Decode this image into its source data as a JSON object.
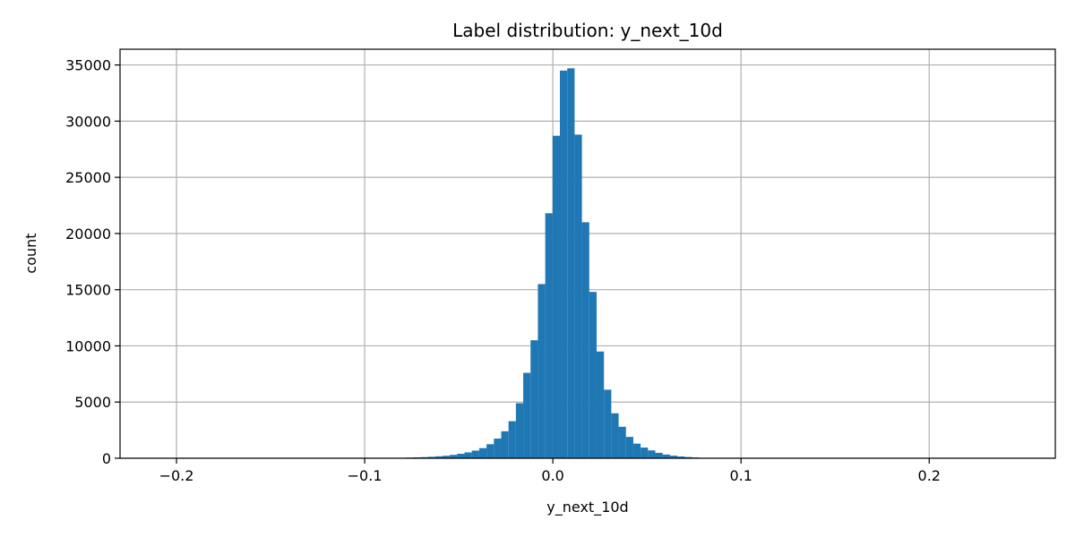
{
  "chart_data": {
    "type": "bar",
    "title": "Label distribution: y_next_10d",
    "xlabel": "y_next_10d",
    "ylabel": "count",
    "xlim": [
      -0.23,
      0.267
    ],
    "ylim": [
      0,
      36400
    ],
    "x_ticks": [
      {
        "value": -0.2,
        "label": "−0.2"
      },
      {
        "value": -0.1,
        "label": "−0.1"
      },
      {
        "value": 0.0,
        "label": "0.0"
      },
      {
        "value": 0.1,
        "label": "0.1"
      },
      {
        "value": 0.2,
        "label": "0.2"
      }
    ],
    "y_ticks": [
      {
        "value": 0,
        "label": "0"
      },
      {
        "value": 5000,
        "label": "5000"
      },
      {
        "value": 10000,
        "label": "10000"
      },
      {
        "value": 15000,
        "label": "15000"
      },
      {
        "value": 20000,
        "label": "20000"
      },
      {
        "value": 25000,
        "label": "25000"
      },
      {
        "value": 30000,
        "label": "30000"
      },
      {
        "value": 35000,
        "label": "35000"
      }
    ],
    "grid": true,
    "bar_color": "#1f77b4",
    "bin_width": 0.0039,
    "bins": [
      {
        "x": -0.0762,
        "count": 60
      },
      {
        "x": -0.0723,
        "count": 80
      },
      {
        "x": -0.0684,
        "count": 100
      },
      {
        "x": -0.0645,
        "count": 130
      },
      {
        "x": -0.0606,
        "count": 170
      },
      {
        "x": -0.0567,
        "count": 220
      },
      {
        "x": -0.0528,
        "count": 300
      },
      {
        "x": -0.0489,
        "count": 400
      },
      {
        "x": -0.045,
        "count": 520
      },
      {
        "x": -0.0411,
        "count": 680
      },
      {
        "x": -0.0372,
        "count": 900
      },
      {
        "x": -0.0333,
        "count": 1250
      },
      {
        "x": -0.0294,
        "count": 1750
      },
      {
        "x": -0.0255,
        "count": 2400
      },
      {
        "x": -0.0216,
        "count": 3300
      },
      {
        "x": -0.0177,
        "count": 4900
      },
      {
        "x": -0.0138,
        "count": 7600
      },
      {
        "x": -0.0099,
        "count": 10500
      },
      {
        "x": -0.006,
        "count": 15500
      },
      {
        "x": -0.0021,
        "count": 21800
      },
      {
        "x": 0.0018,
        "count": 28700
      },
      {
        "x": 0.0057,
        "count": 34500
      },
      {
        "x": 0.0096,
        "count": 34700
      },
      {
        "x": 0.0135,
        "count": 28800
      },
      {
        "x": 0.0174,
        "count": 21000
      },
      {
        "x": 0.0213,
        "count": 14800
      },
      {
        "x": 0.0252,
        "count": 9500
      },
      {
        "x": 0.0291,
        "count": 6100
      },
      {
        "x": 0.033,
        "count": 4000
      },
      {
        "x": 0.0369,
        "count": 2800
      },
      {
        "x": 0.0408,
        "count": 1900
      },
      {
        "x": 0.0447,
        "count": 1300
      },
      {
        "x": 0.0486,
        "count": 950
      },
      {
        "x": 0.0525,
        "count": 700
      },
      {
        "x": 0.0564,
        "count": 480
      },
      {
        "x": 0.0603,
        "count": 330
      },
      {
        "x": 0.0642,
        "count": 230
      },
      {
        "x": 0.0681,
        "count": 160
      },
      {
        "x": 0.072,
        "count": 110
      },
      {
        "x": 0.0759,
        "count": 70
      }
    ]
  }
}
